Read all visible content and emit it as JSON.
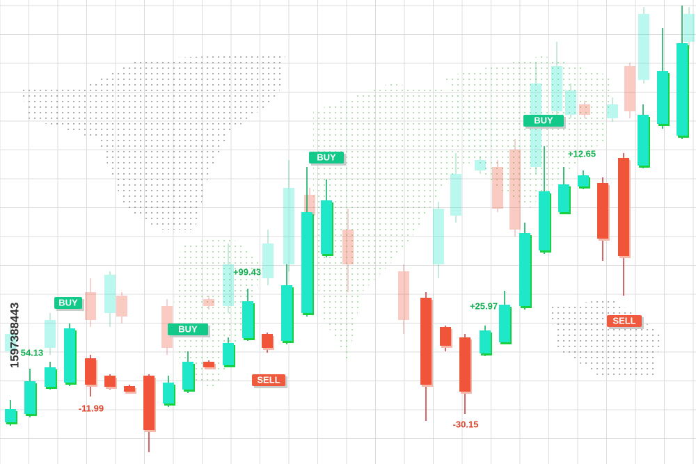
{
  "watermark": "1597388443",
  "buy_tags": [
    "BUY",
    "BUY",
    "BUY",
    "BUY"
  ],
  "sell_tags": [
    "SELL",
    "SELL"
  ],
  "gains": [
    "54.13",
    "+99.43",
    "+25.97",
    "+12.65"
  ],
  "losses": [
    "-11.99",
    "-30.15"
  ]
}
